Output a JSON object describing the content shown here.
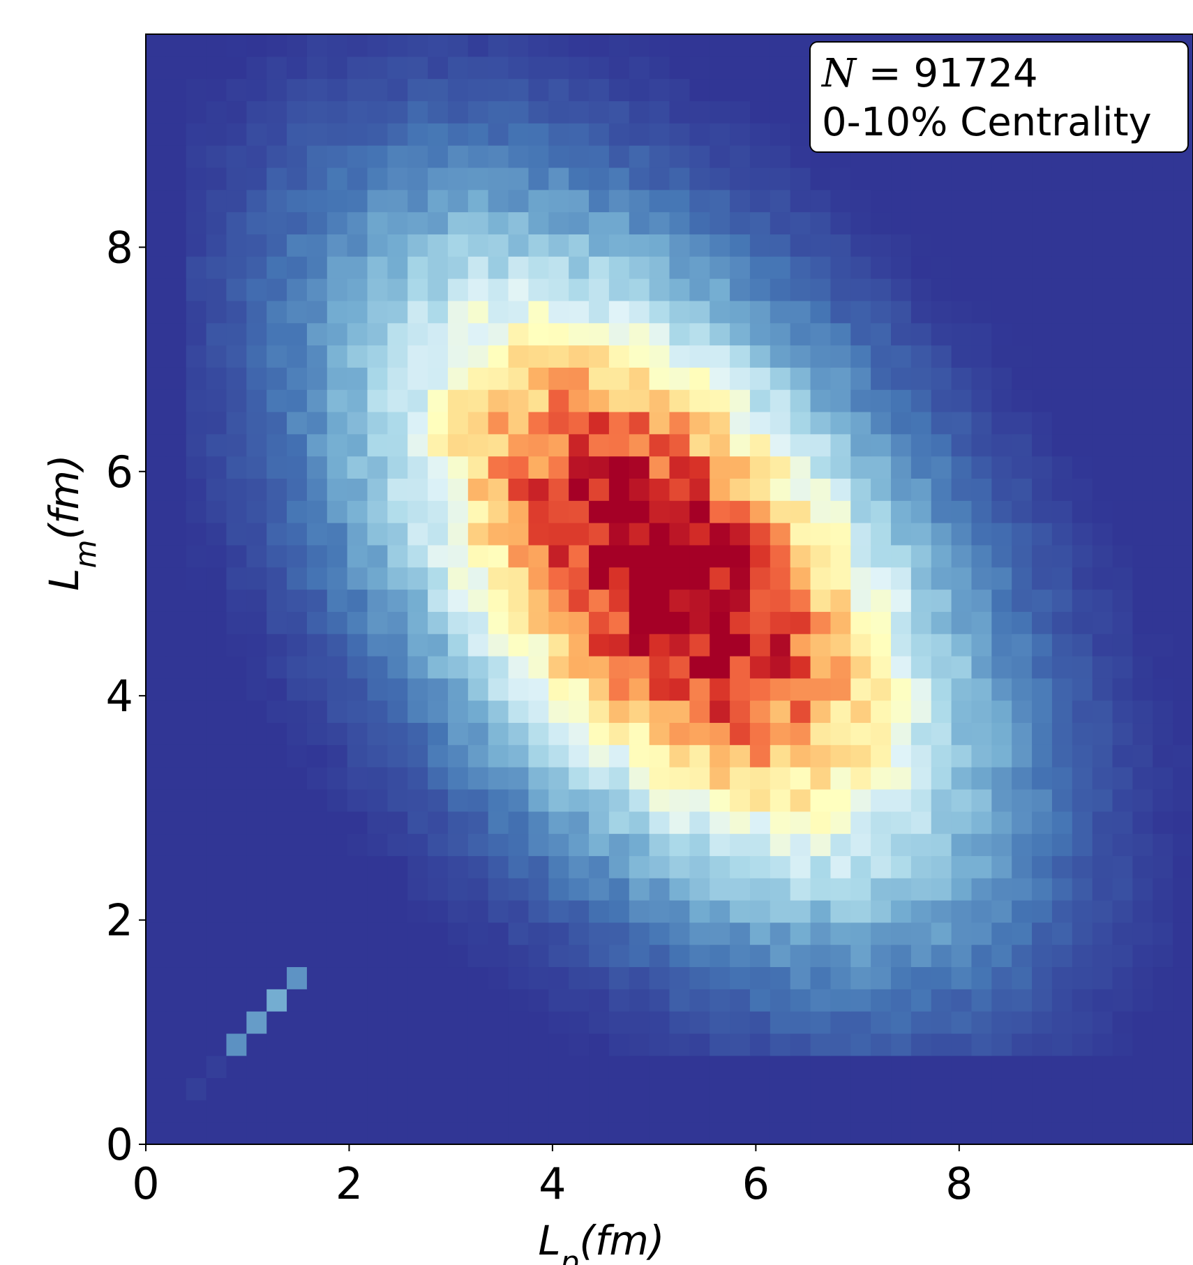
{
  "chart_data": {
    "type": "heatmap",
    "title": "",
    "xlabel": "L_p(fm)",
    "ylabel": "L_m(fm)",
    "xlabel_parts": {
      "main": "L",
      "sub": "p",
      "unit": "(fm)"
    },
    "ylabel_parts": {
      "main": "L",
      "sub": "m",
      "unit": "(fm)"
    },
    "xlim": [
      0,
      10.3
    ],
    "ylim": [
      0,
      9.9
    ],
    "xticks": [
      "0",
      "2",
      "4",
      "6",
      "8"
    ],
    "yticks": [
      "0",
      "2",
      "4",
      "6",
      "8"
    ],
    "bins": {
      "x": 52,
      "y": 50
    },
    "colormap": "RdYlBu_r",
    "colormap_stops": [
      "#313695",
      "#4575b4",
      "#74add1",
      "#abd9e9",
      "#e0f3f8",
      "#ffffbf",
      "#fee090",
      "#fdae61",
      "#f46d43",
      "#d73027",
      "#a50026"
    ],
    "density_model": {
      "peak_center": [
        5.1,
        5.1
      ],
      "peak_sigma_major": 2.0,
      "peak_sigma_minor": 1.05,
      "major_axis_direction": [
        1,
        -1
      ],
      "diagonal_ridge": "weak streak along L_p = L_m from 0.4 to 1.5 fm",
      "max_color": "#a50026",
      "background_color": "#313695"
    },
    "annotation": {
      "line1_var": "N",
      "line1_eq": " = 91724",
      "line2": "0-10% Centrality",
      "placement": "top-right"
    }
  }
}
